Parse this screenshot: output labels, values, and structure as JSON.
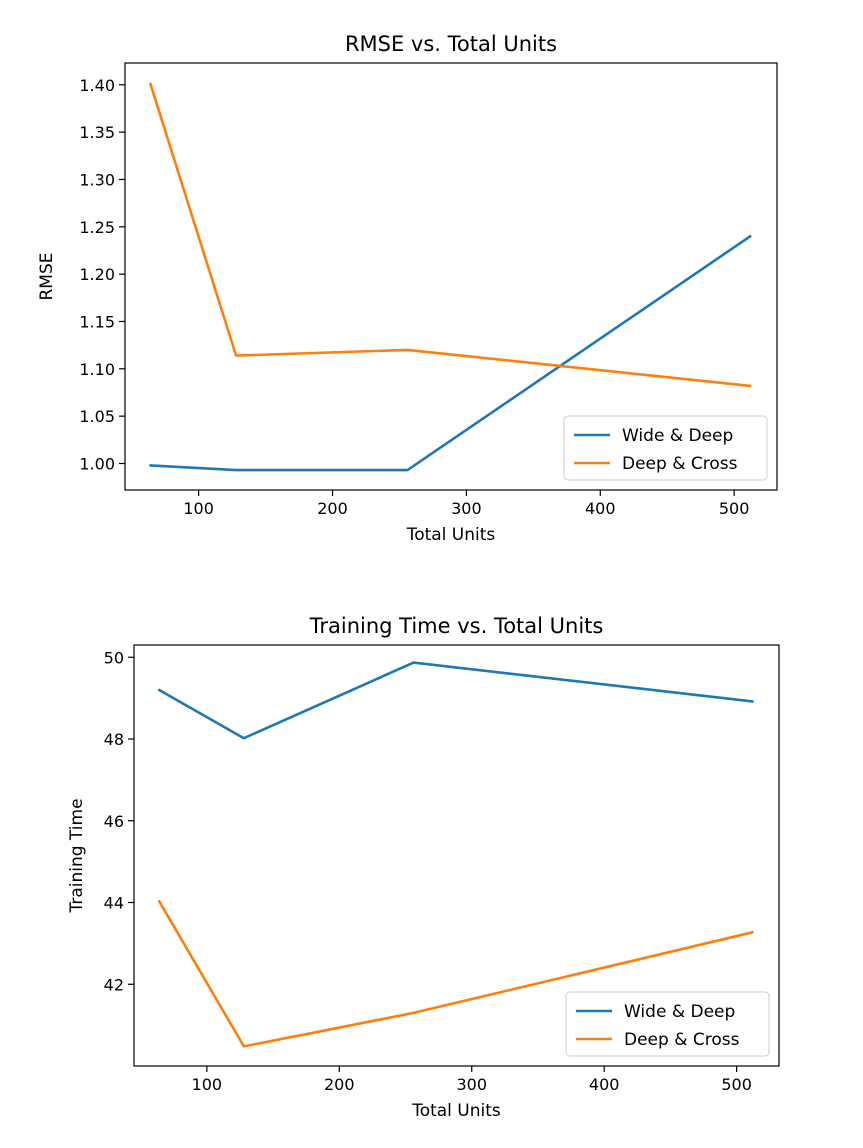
{
  "chart_data": [
    {
      "type": "line",
      "title": "RMSE vs. Total Units",
      "xlabel": "Total Units",
      "ylabel": "RMSE",
      "xlim": [
        45,
        532
      ],
      "ylim": [
        0.972,
        1.423
      ],
      "xticks": [
        100,
        200,
        300,
        400,
        500
      ],
      "yticks": [
        1.0,
        1.05,
        1.1,
        1.15,
        1.2,
        1.25,
        1.3,
        1.35,
        1.4
      ],
      "ytick_decimals": 2,
      "grid": false,
      "legend": "lower-right",
      "x": [
        64,
        128,
        256,
        512
      ],
      "series": [
        {
          "name": "Wide & Deep",
          "color": "#1f77b4",
          "values": [
            0.998,
            0.993,
            0.993,
            1.24
          ]
        },
        {
          "name": "Deep & Cross",
          "color": "#ff7f0e",
          "values": [
            1.401,
            1.114,
            1.12,
            1.082
          ]
        }
      ]
    },
    {
      "type": "line",
      "title": "Training Time vs. Total Units",
      "xlabel": "Total Units",
      "ylabel": "Training Time",
      "xlim": [
        45,
        532
      ],
      "ylim": [
        40.0,
        50.3
      ],
      "xticks": [
        100,
        200,
        300,
        400,
        500
      ],
      "yticks": [
        42,
        44,
        46,
        48,
        50
      ],
      "ytick_decimals": 0,
      "grid": false,
      "legend": "lower-right",
      "x": [
        64,
        128,
        256,
        512
      ],
      "series": [
        {
          "name": "Wide & Deep",
          "color": "#1f77b4",
          "values": [
            49.2,
            48.02,
            49.87,
            48.92
          ]
        },
        {
          "name": "Deep & Cross",
          "color": "#ff7f0e",
          "values": [
            44.03,
            40.48,
            41.3,
            43.27
          ]
        }
      ]
    }
  ]
}
